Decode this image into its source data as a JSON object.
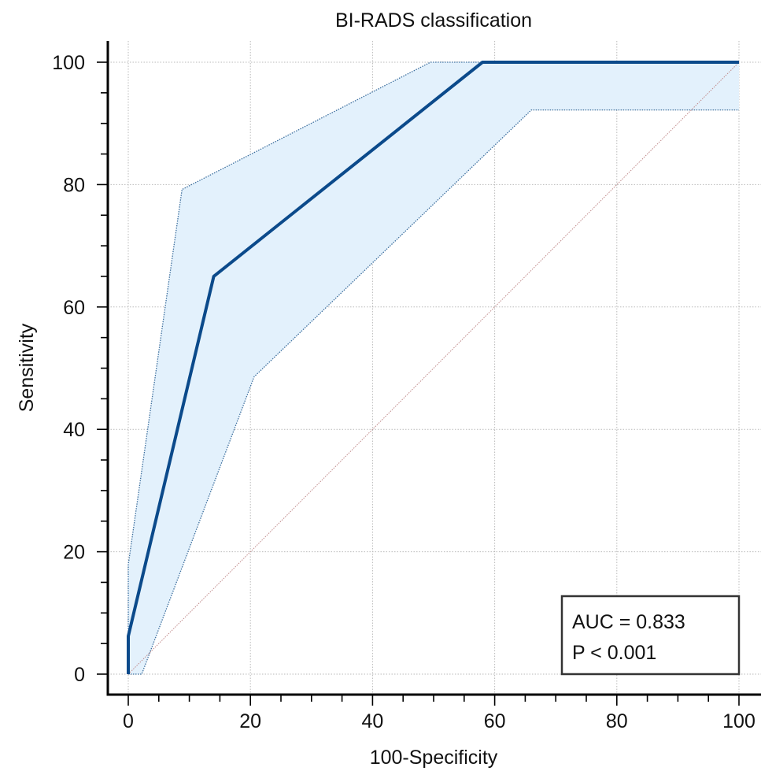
{
  "chart_data": {
    "type": "line",
    "title": "BI-RADS classification",
    "xlabel": "100-Specificity",
    "ylabel": "Sensitivity",
    "xlim": [
      0,
      100
    ],
    "ylim": [
      0,
      100
    ],
    "xticks": [
      0,
      20,
      40,
      60,
      80,
      100
    ],
    "yticks": [
      0,
      20,
      40,
      60,
      80,
      100
    ],
    "grid": true,
    "annotation": {
      "auc_text": "AUC = 0.833",
      "p_text": "P < 0.001",
      "position": "bottom-right"
    },
    "series": [
      {
        "role": "roc",
        "x": [
          0,
          0,
          14,
          58,
          100
        ],
        "y": [
          0,
          6.2,
          65,
          100,
          100
        ]
      },
      {
        "role": "ci-upper",
        "x": [
          0,
          0,
          8.8,
          49.5,
          100,
          100
        ],
        "y": [
          0,
          17.9,
          79.2,
          100,
          100,
          100
        ]
      },
      {
        "role": "ci-lower",
        "x": [
          0,
          2.2,
          20.6,
          66,
          100
        ],
        "y": [
          0,
          0,
          48.6,
          92.2,
          92.2
        ]
      },
      {
        "role": "reference",
        "x": [
          0,
          100
        ],
        "y": [
          0,
          100
        ]
      }
    ],
    "colors": {
      "roc": "#0b4a8b",
      "ci_line": "#3d6f9e",
      "ci_fill": "#e3f1fc",
      "reference": "#c08a8a",
      "grid": "#b9b9b9",
      "axis": "#000000"
    }
  }
}
